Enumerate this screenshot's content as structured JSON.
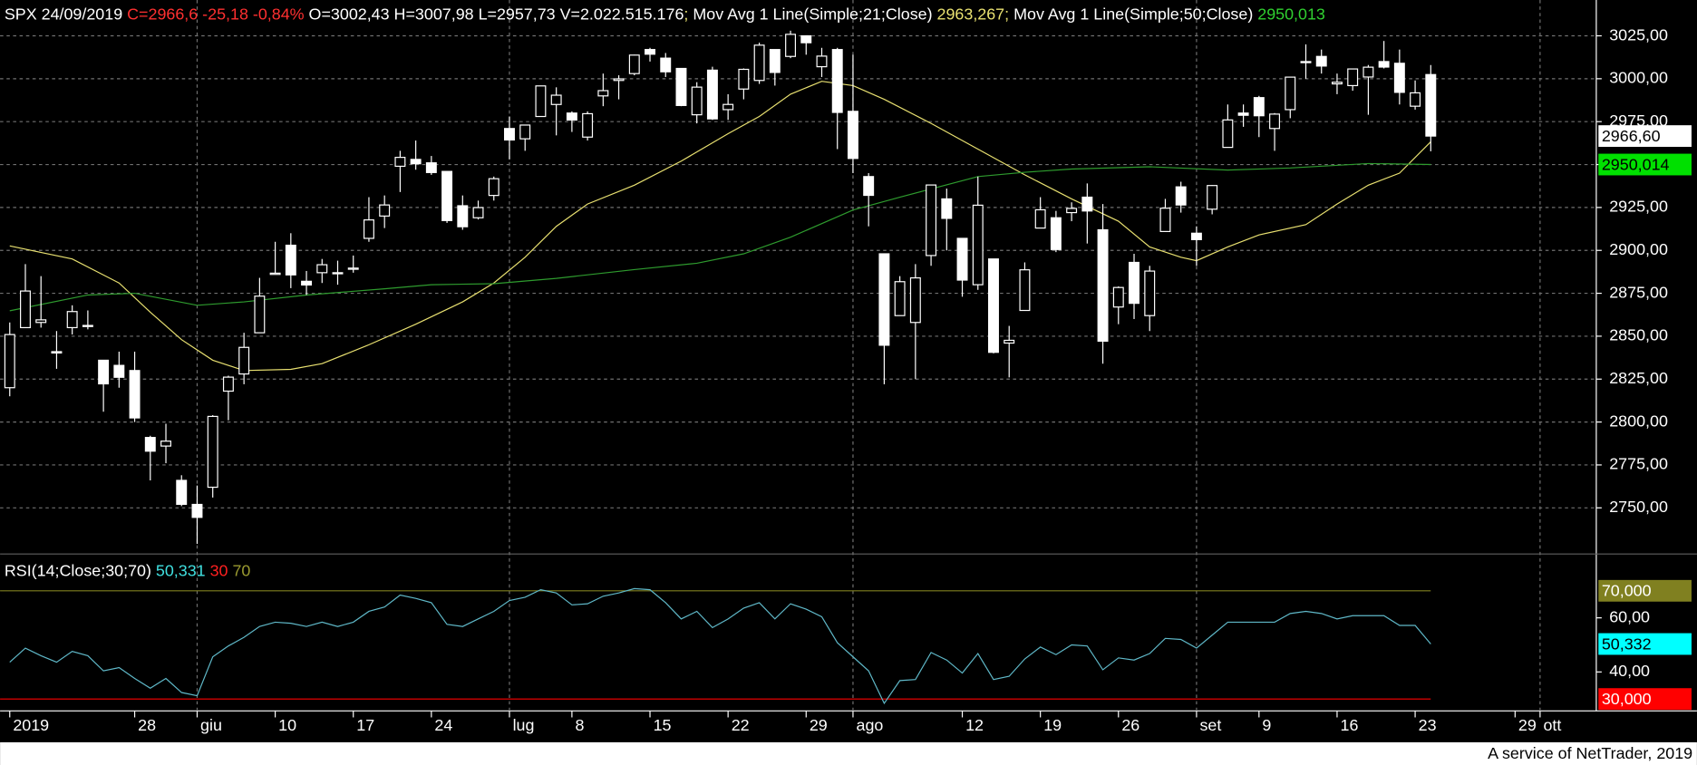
{
  "chart_data": [
    {
      "type": "candlestick",
      "header": [
        {
          "text": "SPX 24/09/2019 ",
          "color": "#ffffff"
        },
        {
          "text": "C=2966,6 -25,18 -0,84%",
          "color": "#ff3030"
        },
        {
          "text": " O=3002,43 H=3007,98 L=2957,73 V=2.022.515.176",
          "color": "#ffffff"
        },
        {
          "text": "; ",
          "color": "#e8e070"
        },
        {
          "text": "Mov Avg 1 Line(Simple;21;Close) ",
          "color": "#ffffff"
        },
        {
          "text": "2963,267",
          "color": "#e8e070"
        },
        {
          "text": "; ",
          "color": "#e8e070"
        },
        {
          "text": "Mov Avg 1 Line(Simple;50;Close) ",
          "color": "#ffffff"
        },
        {
          "text": "2950,013",
          "color": "#30d030"
        }
      ],
      "open": [
        2820,
        2855,
        2858,
        2841,
        2855,
        2856,
        2836,
        2833,
        2830,
        2791,
        2786,
        2766,
        2752,
        2762,
        2818,
        2828,
        2852,
        2886,
        2903,
        2882,
        2887,
        2887,
        2889,
        2907,
        2920,
        2949,
        2953,
        2951,
        2946,
        2926,
        2919,
        2932,
        2971,
        2965,
        2978,
        2985,
        2980,
        2966,
        2990,
        2999,
        3003,
        3017,
        3012,
        3006,
        2979,
        3005,
        2982,
        2994,
        2999,
        3017,
        3013,
        3025,
        3007,
        3017,
        2981,
        2943,
        2898,
        2862,
        2858,
        2897,
        2930,
        2907,
        2880,
        2895,
        2846,
        2865,
        2913,
        2919,
        2922,
        2931,
        2912,
        2867,
        2893,
        2862,
        2911,
        2937,
        2910,
        2924,
        2960,
        2980,
        2989,
        2971,
        2982,
        3010,
        3013,
        2997,
        2996,
        3001,
        3010,
        3009,
        2984,
        3002.43
      ],
      "high": [
        2858,
        2892,
        2885,
        2853,
        2868,
        2865,
        2836,
        2841,
        2841,
        2792,
        2799,
        2769,
        2763,
        2804,
        2827,
        2852,
        2884,
        2905,
        2910,
        2888,
        2895,
        2894,
        2897,
        2931,
        2932,
        2958,
        2964,
        2955,
        2946,
        2932,
        2929,
        2943,
        2978,
        2973,
        2996,
        2995,
        2981,
        2981,
        3003,
        3002,
        3014,
        3018,
        3015,
        3006,
        2998,
        3007,
        2991,
        3006,
        3021,
        3017,
        3028,
        3025,
        3018,
        3018,
        3014,
        2945,
        2898,
        2885,
        2892,
        2938,
        2936,
        2907,
        2943,
        2895,
        2856,
        2893,
        2931,
        2923,
        2928,
        2939,
        2927,
        2879,
        2898,
        2891,
        2930,
        2940,
        2914,
        2938,
        2985,
        2985,
        2990,
        2980,
        3001,
        3020,
        3017,
        3003,
        3006,
        3008,
        3022,
        3017,
        2999,
        3007.98
      ],
      "low": [
        2815,
        2855,
        2855,
        2831,
        2851,
        2854,
        2806,
        2820,
        2800,
        2766,
        2776,
        2751,
        2729,
        2756,
        2801,
        2822,
        2852,
        2886,
        2878,
        2874,
        2881,
        2880,
        2887,
        2905,
        2913,
        2934,
        2947,
        2944,
        2916,
        2912,
        2918,
        2929,
        2953,
        2958,
        2978,
        2967,
        2969,
        2964,
        2984,
        2988,
        3002,
        3010,
        3001,
        2984,
        2974,
        2976,
        2976,
        2988,
        2997,
        2996,
        3012,
        3014,
        3001,
        2959,
        2945,
        2914,
        2822,
        2862,
        2825,
        2891,
        2900,
        2873,
        2877,
        2840,
        2826,
        2865,
        2913,
        2899,
        2917,
        2904,
        2834,
        2857,
        2860,
        2853,
        2911,
        2922,
        2891,
        2921,
        2960,
        2972,
        2966,
        2958,
        2977,
        3000,
        3003,
        2991,
        2993,
        2979,
        3006,
        2985,
        2982,
        2957.73
      ],
      "close": [
        2850.96,
        2876.32,
        2859.53,
        2840.23,
        2864.36,
        2856.27,
        2822.24,
        2826.06,
        2802.39,
        2783.02,
        2788.86,
        2752.06,
        2744.45,
        2803.27,
        2826.15,
        2843.49,
        2873.34,
        2886.73,
        2885.72,
        2879.84,
        2891.64,
        2886.98,
        2889.67,
        2917.75,
        2926.46,
        2954.18,
        2950.46,
        2945.35,
        2917.38,
        2913.78,
        2924.92,
        2941.76,
        2964.33,
        2973.01,
        2995.82,
        2990.41,
        2975.95,
        2979.63,
        2993.07,
        2999.91,
        3013.77,
        3014.3,
        3004.04,
        2984.42,
        2995.11,
        2976.61,
        2985.03,
        3005.47,
        3019.56,
        3003.67,
        3025.86,
        3020.97,
        3013.18,
        2980.38,
        2953.56,
        2932.05,
        2844.74,
        2881.77,
        2883.98,
        2938.09,
        2918.65,
        2882.7,
        2926.32,
        2840.6,
        2847.6,
        2888.68,
        2923.65,
        2900.51,
        2924.43,
        2922.95,
        2847.11,
        2878.38,
        2869.16,
        2887.94,
        2924.58,
        2926.46,
        2906.27,
        2937.78,
        2976,
        2978.71,
        2978.43,
        2979.39,
        3000.93,
        3009.57,
        3007.39,
        2997.96,
        3005.7,
        3006.73,
        3006.79,
        2992.07,
        2991.78,
        2966.6
      ],
      "up_color": "#000000",
      "down_color": "#ffffff",
      "wick_color": "#ffffff",
      "series": [
        {
          "color": "#e8e070",
          "x": [
            0,
            4,
            7,
            9,
            11,
            13,
            15,
            18,
            20,
            23,
            26,
            29,
            31,
            33,
            35,
            37,
            40,
            43,
            46,
            48,
            50,
            52,
            54,
            56,
            59,
            62,
            65,
            68,
            71,
            73,
            75,
            76,
            78,
            80,
            83,
            85,
            87,
            89,
            91
          ],
          "values": [
            2902.6,
            2895,
            2881,
            2864,
            2848,
            2836,
            2830,
            2830.7,
            2834,
            2845,
            2857,
            2870,
            2881,
            2896,
            2914,
            2927,
            2938,
            2952,
            2968,
            2978,
            2991,
            2998.5,
            2996,
            2988,
            2974,
            2959,
            2944,
            2930,
            2917,
            2902,
            2896,
            2894,
            2902,
            2909,
            2915,
            2927,
            2938,
            2945,
            2963.267
          ]
        },
        {
          "color": "#2e9b2e",
          "x": [
            0,
            5,
            8,
            12,
            15,
            19,
            24,
            27,
            31,
            35,
            40,
            44,
            47,
            50,
            54,
            57,
            62,
            65,
            68,
            73,
            78,
            82,
            87,
            91
          ],
          "values": [
            2864.8,
            2874,
            2875,
            2868,
            2870,
            2874,
            2877.6,
            2880,
            2880.6,
            2883.7,
            2888.8,
            2892.5,
            2898,
            2907.7,
            2923.5,
            2931,
            2943,
            2945.5,
            2947.4,
            2948.7,
            2946.8,
            2948,
            2950.6,
            2950.013
          ]
        }
      ],
      "xlim": [
        -0.62,
        101.6
      ],
      "xticks": [
        {
          "value": 0,
          "label": "2019"
        },
        {
          "value": 8,
          "label": "28"
        },
        {
          "value": 12,
          "label": "giu",
          "grid": true
        },
        {
          "value": 17,
          "label": "10"
        },
        {
          "value": 22,
          "label": "17"
        },
        {
          "value": 27,
          "label": "24"
        },
        {
          "value": 32,
          "label": "lug",
          "grid": true
        },
        {
          "value": 36,
          "label": "8"
        },
        {
          "value": 41,
          "label": "15"
        },
        {
          "value": 46,
          "label": "22"
        },
        {
          "value": 51,
          "label": "29"
        },
        {
          "value": 54,
          "label": "ago",
          "grid": true
        },
        {
          "value": 61,
          "label": "12"
        },
        {
          "value": 66,
          "label": "19"
        },
        {
          "value": 71,
          "label": "26"
        },
        {
          "value": 76,
          "label": "set",
          "grid": true
        },
        {
          "value": 80,
          "label": "9"
        },
        {
          "value": 85,
          "label": "16"
        },
        {
          "value": 90,
          "label": "23"
        },
        {
          "value": 96.4,
          "label": "29"
        },
        {
          "value": 98,
          "label": "ott",
          "grid": true
        }
      ],
      "ylim": [
        2725,
        3032
      ],
      "yticks": [
        {
          "value": 2750,
          "label": "2750,00"
        },
        {
          "value": 2775,
          "label": "2775,00"
        },
        {
          "value": 2800,
          "label": "2800,00"
        },
        {
          "value": 2825,
          "label": "2825,00"
        },
        {
          "value": 2850,
          "label": "2850,00"
        },
        {
          "value": 2875,
          "label": "2875,00"
        },
        {
          "value": 2900,
          "label": "2900,00"
        },
        {
          "value": 2925,
          "label": "2925,00"
        },
        {
          "value": 2950,
          "label": "2950,00"
        },
        {
          "value": 2975,
          "label": "2975,00"
        },
        {
          "value": 3000,
          "label": "3000,00"
        },
        {
          "value": 3025,
          "label": "3025,00"
        }
      ],
      "grid": true,
      "value_boxes": [
        {
          "value": 2966.6,
          "label": "2966,60",
          "color": "#ffffff"
        },
        {
          "value": 2950.014,
          "label": "2950,014",
          "color": "#00e000"
        }
      ]
    },
    {
      "type": "line",
      "header": [
        {
          "text": "RSI(14;Close;30;70) ",
          "color": "#ffffff"
        },
        {
          "text": "50,331 ",
          "color": "#40e0e0"
        },
        {
          "text": "30 ",
          "color": "#ff2020"
        },
        {
          "text": "70",
          "color": "#9a9a30"
        }
      ],
      "color": "#5fb8c8",
      "values": [
        43.6,
        48.8,
        46,
        43.6,
        47.6,
        46,
        40.4,
        41.6,
        37.6,
        34,
        37.6,
        32.4,
        31.2,
        45.6,
        49.6,
        52.8,
        56.8,
        58.4,
        58,
        56.8,
        58.4,
        56.8,
        58.4,
        62.4,
        64,
        68.4,
        67.2,
        65.6,
        57.6,
        56.8,
        59.6,
        62.4,
        66.4,
        67.6,
        70.4,
        69.2,
        64.8,
        65.2,
        68,
        69.2,
        70.8,
        70.4,
        65.6,
        59.6,
        62.4,
        56.4,
        59.6,
        63.6,
        65.6,
        59.6,
        65.2,
        63.2,
        60.4,
        50.8,
        45.6,
        40.4,
        28.4,
        36.8,
        37.2,
        47.2,
        44.4,
        39.6,
        46.8,
        37.2,
        38.4,
        44.8,
        49.2,
        46.4,
        50,
        49.6,
        40.8,
        45.2,
        44.4,
        46.8,
        52.4,
        52,
        48.8,
        53.6,
        58.4,
        58.4,
        58.4,
        58.4,
        61.6,
        62.4,
        61.6,
        59.6,
        60.8,
        60.8,
        60.8,
        57.2,
        57.2,
        50.331
      ],
      "ylim": [
        26,
        82
      ],
      "yticks": [
        {
          "value": 40,
          "label": "40,00"
        },
        {
          "value": 60,
          "label": "60,00"
        }
      ],
      "levels": [
        {
          "value": 70,
          "label": "70,000",
          "color": "#808020"
        },
        {
          "value": 30,
          "label": "30,000",
          "color": "#ff0000"
        }
      ],
      "value_boxes": [
        {
          "value": 50.332,
          "label": "50,332",
          "color": "#00ffff"
        }
      ]
    }
  ],
  "footer": "A service of NetTrader, 2019"
}
